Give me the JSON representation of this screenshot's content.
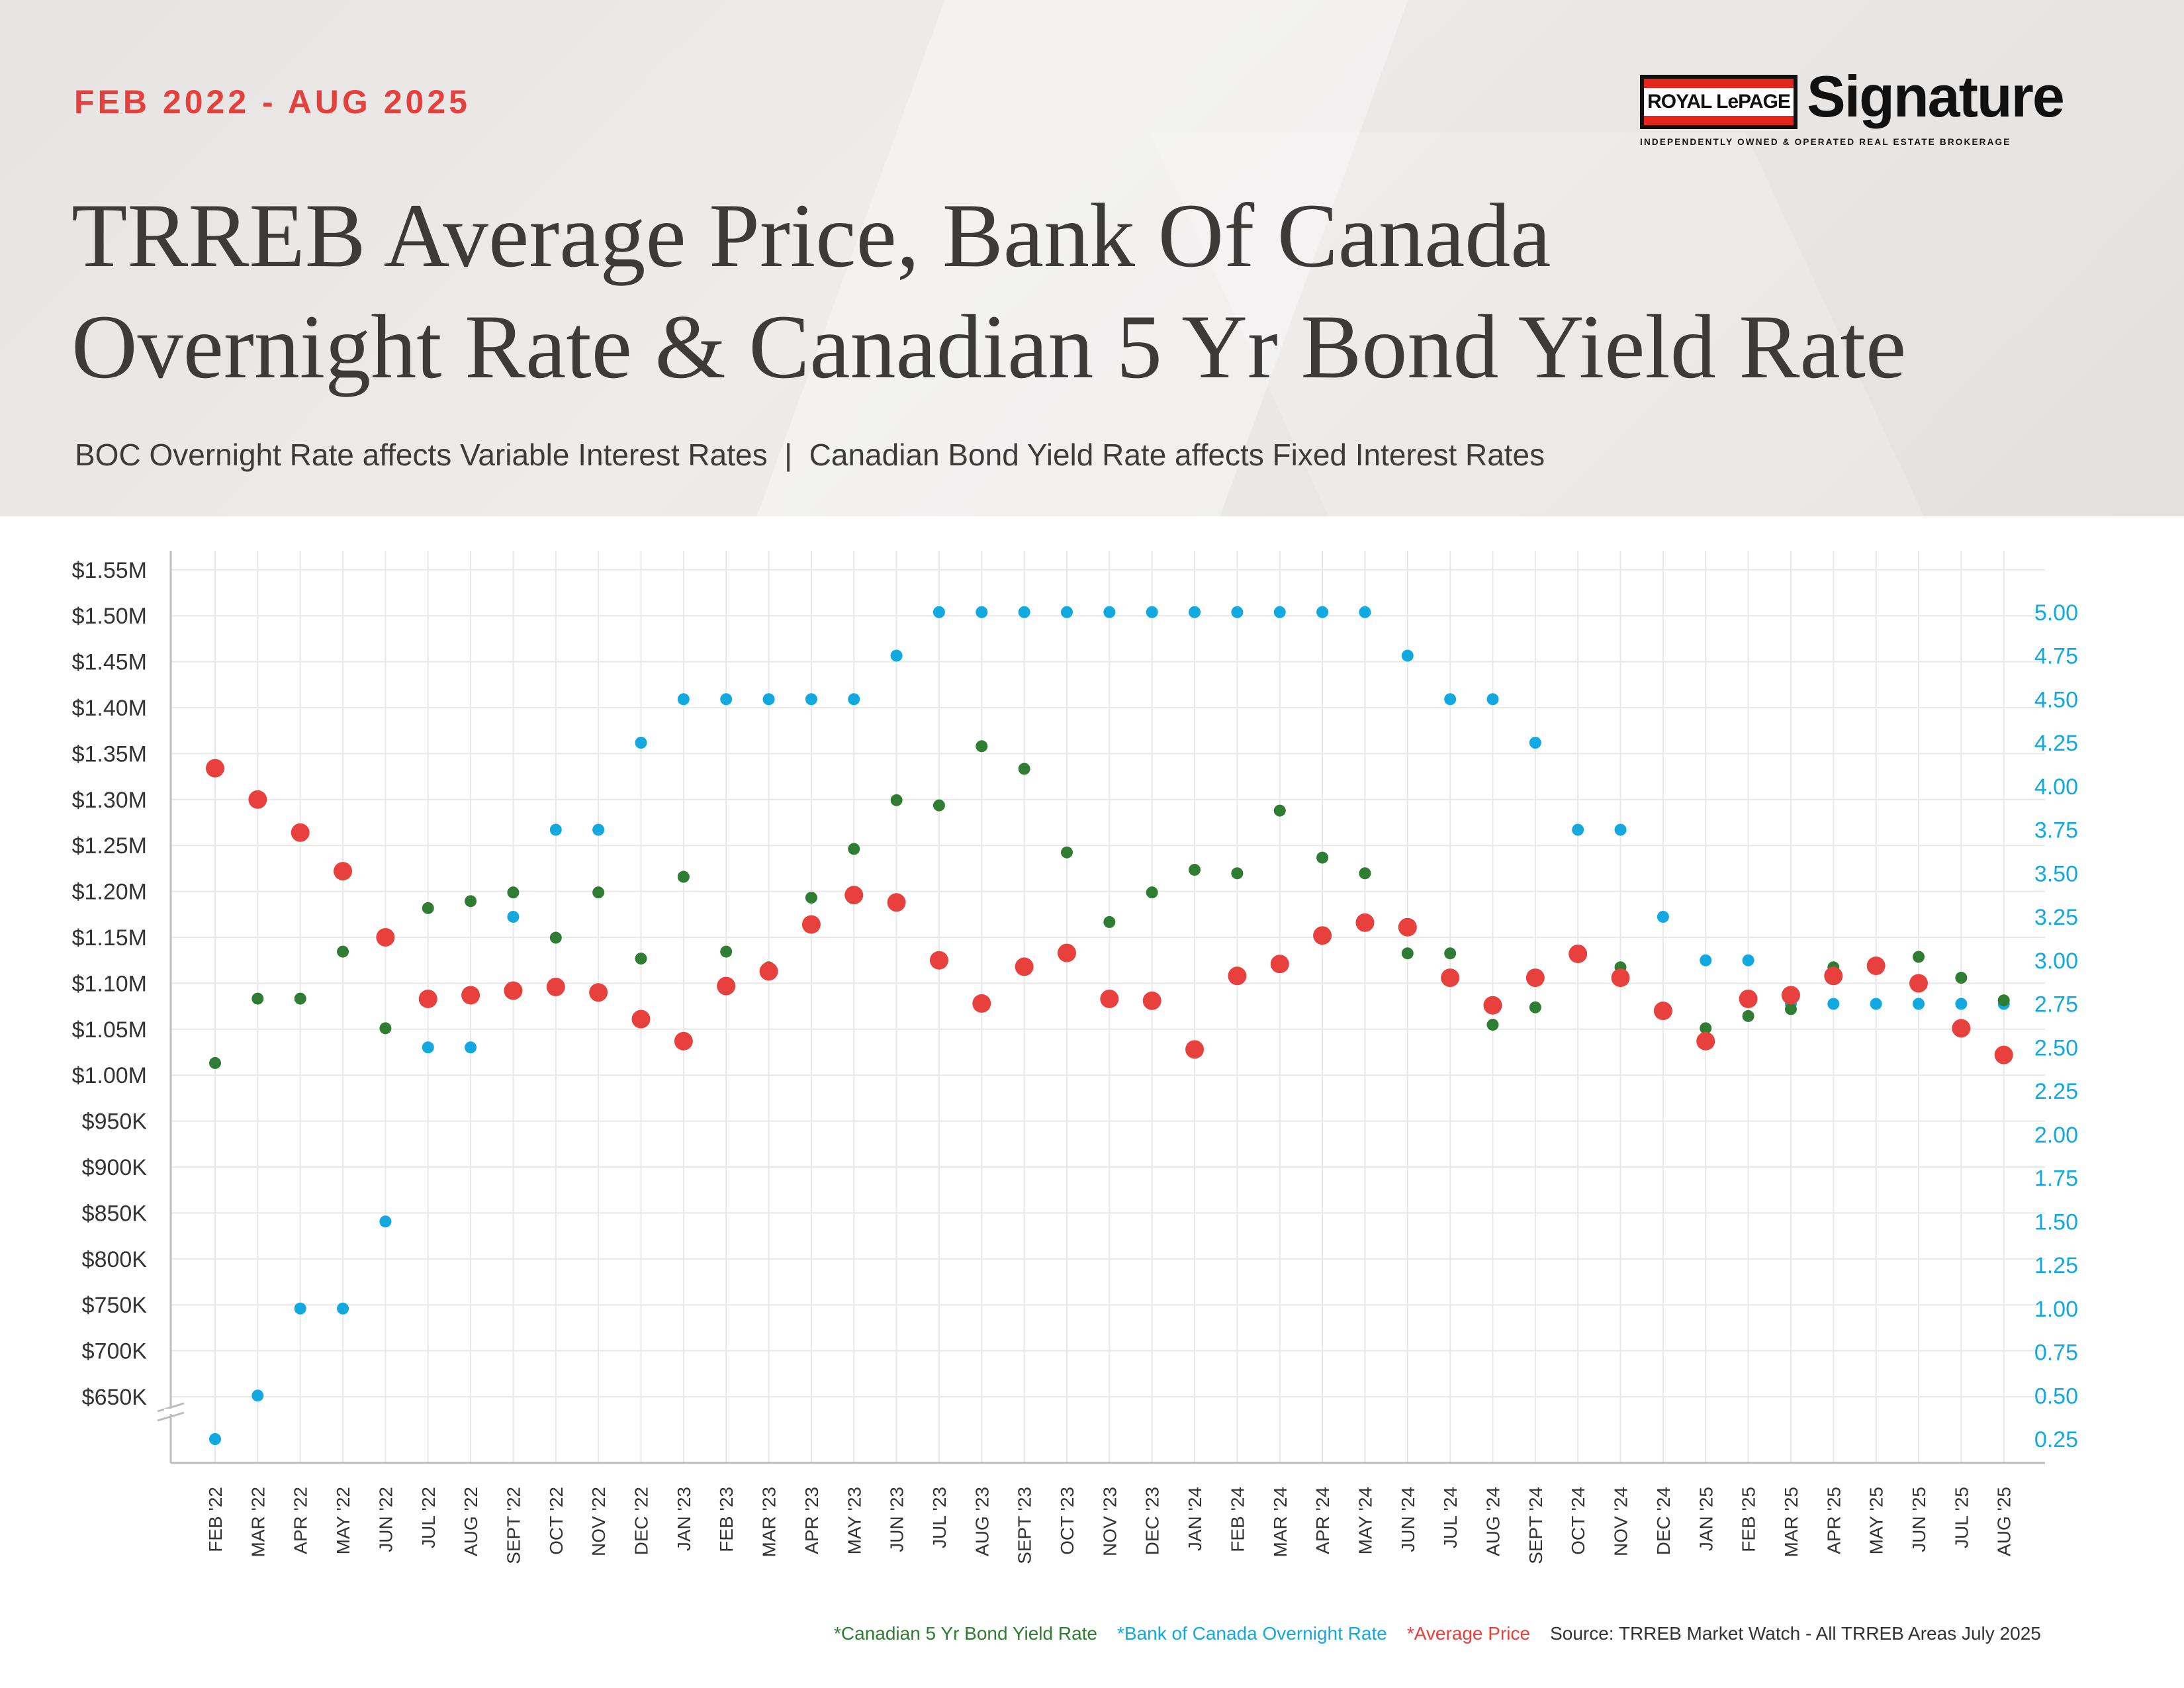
{
  "header": {
    "date_range": "FEB 2022 - AUG 2025",
    "title_line1": "TRREB Average Price, Bank Of Canada",
    "title_line2": "Overnight Rate & Canadian 5 Yr Bond Yield Rate",
    "subtitle_left": "BOC Overnight Rate affects Variable Interest Rates",
    "subtitle_sep": "|",
    "subtitle_right": "Canadian Bond Yield Rate affects Fixed Interest Rates"
  },
  "logo": {
    "badge_text": "ROYAL LePAGE",
    "wordmark": "Signature",
    "tagline": "INDEPENDENTLY OWNED & OPERATED REAL ESTATE BROKERAGE"
  },
  "legend": {
    "bond": "*Canadian 5 Yr Bond Yield Rate",
    "boc": "*Bank of Canada Overnight Rate",
    "price": "*Average Price",
    "source": "Source: TRREB Market Watch - All TRREB Areas July 2025"
  },
  "colors": {
    "bond": "#2f7d32",
    "boc": "#12a8e0",
    "price": "#e8413d",
    "accent": "#e2413d",
    "axis_text": "#333333",
    "right_axis_text": "#12a8e0",
    "grid": "#e8e8e8"
  },
  "chart_data": {
    "type": "scatter",
    "categories": [
      "FEB '22",
      "MAR '22",
      "APR '22",
      "MAY '22",
      "JUN '22",
      "JUL '22",
      "AUG '22",
      "SEPT '22",
      "OCT '22",
      "NOV '22",
      "DEC '22",
      "JAN '23",
      "FEB '23",
      "MAR '23",
      "APR '23",
      "MAY '23",
      "JUN '23",
      "JUL '23",
      "AUG '23",
      "SEPT '23",
      "OCT '23",
      "NOV '23",
      "DEC '23",
      "JAN '24",
      "FEB '24",
      "MAR '24",
      "APR '24",
      "MAY '24",
      "JUN '24",
      "JUL '24",
      "AUG '24",
      "SEPT '24",
      "OCT '24",
      "NOV '24",
      "DEC '24",
      "JAN '25",
      "FEB '25",
      "MAR '25",
      "APR '25",
      "MAY '25",
      "JUN '25",
      "JUL '25",
      "AUG '25"
    ],
    "left_axis": {
      "ticks": [
        650000,
        700000,
        750000,
        800000,
        850000,
        900000,
        950000,
        1000000,
        1050000,
        1100000,
        1150000,
        1200000,
        1250000,
        1300000,
        1350000,
        1400000,
        1450000,
        1500000,
        1550000
      ],
      "tick_labels": [
        "$650K",
        "$700K",
        "$750K",
        "$800K",
        "$850K",
        "$900K",
        "$950K",
        "$1.00M",
        "$1.05M",
        "$1.10M",
        "$1.15M",
        "$1.20M",
        "$1.25M",
        "$1.30M",
        "$1.35M",
        "$1.40M",
        "$1.45M",
        "$1.50M",
        "$1.55M"
      ]
    },
    "right_axis": {
      "ticks": [
        0.25,
        0.5,
        0.75,
        1.0,
        1.25,
        1.5,
        1.75,
        2.0,
        2.25,
        2.5,
        2.75,
        3.0,
        3.25,
        3.5,
        3.75,
        4.0,
        4.25,
        4.5,
        4.75,
        5.0
      ],
      "tick_labels": [
        "0.25",
        "0.50",
        "0.75",
        "1.00",
        "1.25",
        "1.50",
        "1.75",
        "2.00",
        "2.25",
        "2.50",
        "2.75",
        "3.00",
        "3.25",
        "3.50",
        "3.75",
        "4.00",
        "4.25",
        "4.50",
        "4.75",
        "5.00"
      ]
    },
    "grid": true,
    "series": [
      {
        "name": "*Average Price",
        "axis": "left",
        "values": [
          1334000,
          1300000,
          1264000,
          1222000,
          1150000,
          1083000,
          1087000,
          1092000,
          1096000,
          1090000,
          1061000,
          1037000,
          1097000,
          1113000,
          1164000,
          1196000,
          1188000,
          1125000,
          1078000,
          1118000,
          1133000,
          1083000,
          1081000,
          1028000,
          1108000,
          1121000,
          1152000,
          1166000,
          1161000,
          1106000,
          1076000,
          1106000,
          1132000,
          1106000,
          1070000,
          1037000,
          1083000,
          1087000,
          1108000,
          1119000,
          1100000,
          1051000,
          1022000
        ]
      },
      {
        "name": "*Bank of Canada Overnight Rate",
        "axis": "right",
        "values": [
          0.25,
          0.5,
          1.0,
          1.0,
          1.5,
          2.5,
          2.5,
          3.25,
          3.75,
          3.75,
          4.25,
          4.5,
          4.5,
          4.5,
          4.5,
          4.5,
          4.75,
          5.0,
          5.0,
          5.0,
          5.0,
          5.0,
          5.0,
          5.0,
          5.0,
          5.0,
          5.0,
          5.0,
          4.75,
          4.5,
          4.5,
          4.25,
          3.75,
          3.75,
          3.25,
          3.0,
          3.0,
          2.75,
          2.75,
          2.75,
          2.75,
          2.75,
          2.75
        ]
      },
      {
        "name": "*Canadian 5 Yr Bond Yield Rate",
        "axis": "right",
        "values": [
          2.41,
          2.78,
          2.78,
          3.05,
          2.61,
          3.3,
          3.34,
          3.39,
          3.13,
          3.39,
          3.01,
          3.48,
          3.05,
          2.96,
          3.36,
          3.64,
          3.92,
          3.89,
          4.23,
          4.1,
          3.62,
          3.22,
          3.39,
          3.52,
          3.5,
          3.86,
          3.59,
          3.5,
          3.04,
          3.04,
          2.63,
          2.73,
          3.04,
          2.96,
          2.7,
          2.61,
          2.68,
          2.72,
          2.96,
          2.97,
          3.02,
          2.9,
          2.77
        ]
      }
    ]
  }
}
